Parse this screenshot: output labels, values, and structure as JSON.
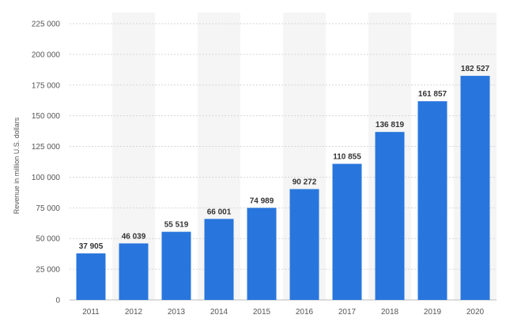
{
  "chart_data": {
    "type": "bar",
    "categories": [
      "2011",
      "2012",
      "2013",
      "2014",
      "2015",
      "2016",
      "2017",
      "2018",
      "2019",
      "2020"
    ],
    "values": [
      37905,
      46039,
      55519,
      66001,
      74989,
      90272,
      110855,
      136819,
      161857,
      182527
    ],
    "value_labels": [
      "37 905",
      "46 039",
      "55 519",
      "66 001",
      "74 989",
      "90 272",
      "110 855",
      "136 819",
      "161 857",
      "182 527"
    ],
    "title": "",
    "xlabel": "",
    "ylabel": "Revenue in million U.S. dollars",
    "ylim": [
      0,
      225000
    ],
    "yticks": [
      0,
      25000,
      50000,
      75000,
      100000,
      125000,
      150000,
      175000,
      200000,
      225000
    ],
    "ytick_labels": [
      "0",
      "25 000",
      "50 000",
      "75 000",
      "100 000",
      "125 000",
      "150 000",
      "175 000",
      "200 000",
      "225 000"
    ],
    "grid": true,
    "alternating_column_bands": true,
    "bar_color": "#2876dd",
    "band_color": "#f5f5f5",
    "grid_color": "#d6d6d6"
  }
}
